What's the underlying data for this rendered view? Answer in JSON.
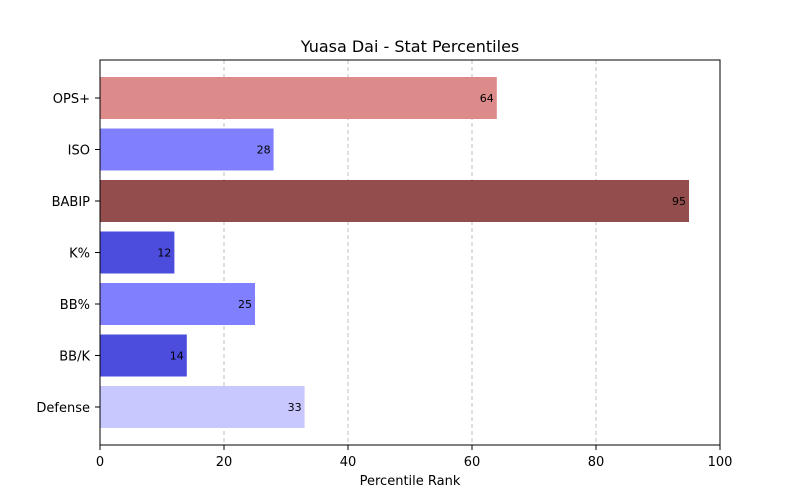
{
  "chart_data": {
    "type": "bar",
    "orientation": "horizontal",
    "title": "Yuasa Dai - Stat Percentiles",
    "xlabel": "Percentile Rank",
    "ylabel": "",
    "xlim": [
      0,
      100
    ],
    "xticks": [
      "0",
      "20",
      "40",
      "60",
      "80",
      "100"
    ],
    "grid": "x-dashed",
    "categories": [
      "OPS+",
      "ISO",
      "BABIP",
      "K%",
      "BB%",
      "BB/K",
      "Defense"
    ],
    "values": [
      64,
      28,
      95,
      12,
      25,
      14,
      33
    ],
    "value_labels": [
      "64",
      "28",
      "95",
      "12",
      "25",
      "14",
      "33"
    ],
    "colors": [
      "#dd8a8a",
      "#8080ff",
      "#944d4d",
      "#4d4ddd",
      "#8080ff",
      "#4d4ddd",
      "#c8c8ff"
    ]
  }
}
